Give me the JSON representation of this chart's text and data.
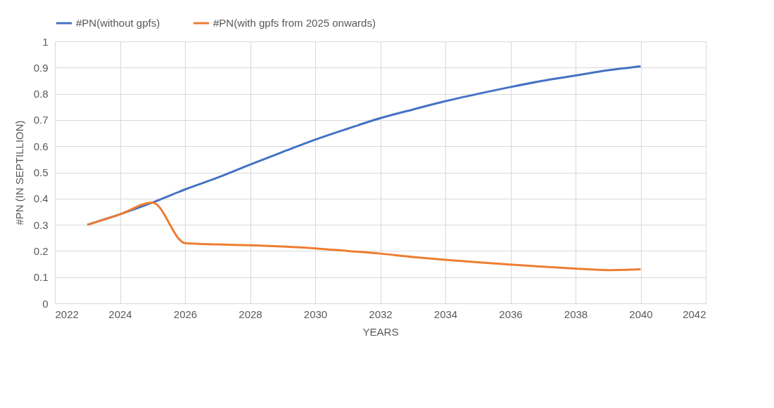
{
  "chart_data": {
    "type": "line",
    "xlabel": "YEARS",
    "ylabel": "#PN (IN SEPTILLION)",
    "x": [
      2023,
      2024,
      2025,
      2026,
      2027,
      2028,
      2029,
      2030,
      2031,
      2032,
      2033,
      2034,
      2035,
      2036,
      2037,
      2038,
      2039,
      2040
    ],
    "series": [
      {
        "name": "#PN(without gpfs)",
        "color": "#4472c4",
        "values": [
          0.3,
          0.34,
          0.385,
          0.435,
          0.48,
          0.53,
          0.578,
          0.625,
          0.667,
          0.707,
          0.74,
          0.772,
          0.8,
          0.826,
          0.85,
          0.87,
          0.89,
          0.905
        ]
      },
      {
        "name": "#PN(with gpfs from 2025 onwards)",
        "color": "#ed7d31",
        "values": [
          0.3,
          0.34,
          0.385,
          0.23,
          0.225,
          0.222,
          0.217,
          0.21,
          0.2,
          0.19,
          0.177,
          0.166,
          0.157,
          0.148,
          0.14,
          0.133,
          0.127,
          0.13
        ]
      }
    ],
    "xlim": [
      2022,
      2042
    ],
    "xticks": [
      2022,
      2024,
      2026,
      2028,
      2030,
      2032,
      2034,
      2036,
      2038,
      2040,
      2042
    ],
    "ylim": [
      0,
      1
    ],
    "yticks": [
      0,
      0.1,
      0.2,
      0.3,
      0.4,
      0.5,
      0.6,
      0.7,
      0.8,
      0.9,
      1
    ],
    "grid": true,
    "legend": "top",
    "marker": "none",
    "line_style": "solid"
  }
}
